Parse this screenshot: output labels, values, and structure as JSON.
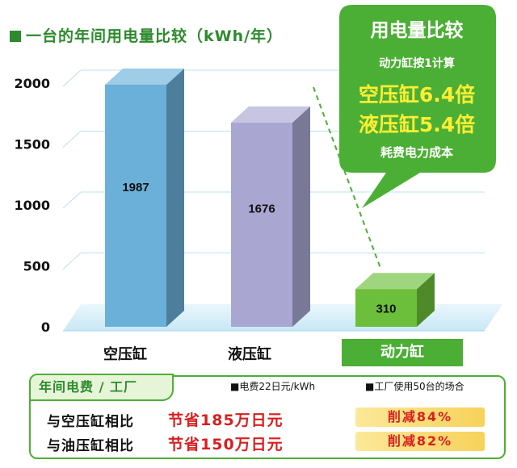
{
  "title": "一台的年间用电量比较（kWh/年）",
  "chart_data": {
    "type": "bar",
    "categories": [
      "空压缸",
      "液压缸",
      "动力缸"
    ],
    "values": [
      1987,
      1676,
      310
    ],
    "highlighted_category": "动力缸",
    "ylim": [
      0,
      2000
    ],
    "yticks": [
      0,
      500,
      1000,
      1500,
      2000
    ],
    "ytick_labels": [
      "0",
      "500",
      "1000",
      "1500",
      "2000"
    ],
    "value_labels": [
      "1987",
      "1676",
      "310"
    ],
    "unit": "kWh/年"
  },
  "callout": {
    "title": "用电量比较",
    "subtitle": "动力缸按1计算",
    "line1": "空压缸6.4倍",
    "line2": "液压缸5.4倍",
    "note": "耗费电力成本"
  },
  "panel": {
    "title": "年间电费 / 工厂",
    "legend1": "■电费22日元/kWh",
    "legend2": "■工厂使用50台的场合",
    "rows": [
      {
        "label": "与空压缸相比",
        "savings": "节省185万日元",
        "reduction": "削减84%"
      },
      {
        "label": "与油压缸相比",
        "savings": "节省150万日元",
        "reduction": "削减82%"
      }
    ]
  },
  "colors": {
    "bar_air": "#6bb0d8",
    "bar_hydraulic": "#a9a6d2",
    "bar_power": "#6cbf3a",
    "accent_green": "#4caf35",
    "red": "#d81f1f"
  }
}
